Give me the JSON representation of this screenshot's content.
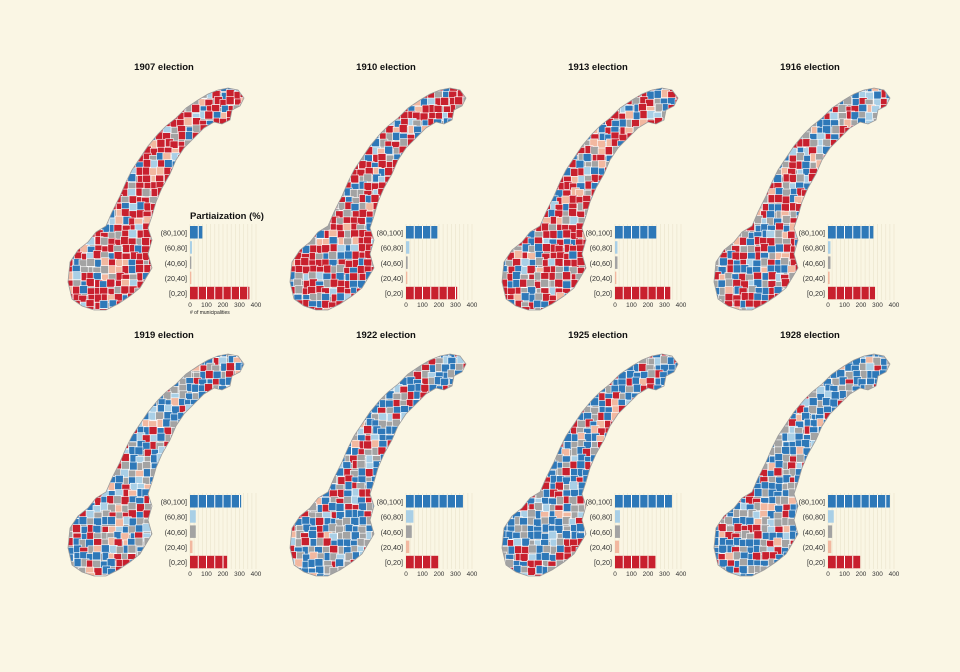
{
  "colors": {
    "background": "#faf6e4",
    "gridline": "#ece6cf",
    "category_colors": [
      "#2e78b8",
      "#a9cfe6",
      "#a3a3a3",
      "#f2b8a0",
      "#c8202e"
    ],
    "map_fill_bins": [
      "#c8202e",
      "#a3a3a3",
      "#2e78b8",
      "#a9cfe6",
      "#f2b8a0"
    ]
  },
  "legend": {
    "title": "Partiaization (%)",
    "x_axis_note": "# of municipalities"
  },
  "chart_data": [
    {
      "type": "bar",
      "orientation": "horizontal",
      "title": "1907 election",
      "categories": [
        "(80,100]",
        "(60,80]",
        "(40,60]",
        "(20,40]",
        "[0,20]"
      ],
      "values": [
        75,
        12,
        8,
        8,
        360
      ],
      "xlim": [
        0,
        400
      ],
      "xticks": [
        0,
        100,
        200,
        300,
        400
      ],
      "xlabel": "# of municipalities",
      "map_mix": [
        60,
        12,
        16,
        5,
        7
      ]
    },
    {
      "type": "bar",
      "orientation": "horizontal",
      "title": "1910 election",
      "categories": [
        "(80,100]",
        "(60,80]",
        "(40,60]",
        "(20,40]",
        "[0,20]"
      ],
      "values": [
        190,
        20,
        10,
        8,
        310
      ],
      "xlim": [
        0,
        400
      ],
      "xticks": [
        0,
        100,
        200,
        300,
        400
      ],
      "map_mix": [
        50,
        16,
        22,
        6,
        6
      ]
    },
    {
      "type": "bar",
      "orientation": "horizontal",
      "title": "1913 election",
      "categories": [
        "(80,100]",
        "(60,80]",
        "(40,60]",
        "(20,40]",
        "[0,20]"
      ],
      "values": [
        250,
        15,
        15,
        8,
        335
      ],
      "xlim": [
        0,
        400
      ],
      "xticks": [
        0,
        100,
        200,
        300,
        400
      ],
      "map_mix": [
        42,
        18,
        28,
        6,
        6
      ]
    },
    {
      "type": "bar",
      "orientation": "horizontal",
      "title": "1916 election",
      "categories": [
        "(80,100]",
        "(60,80]",
        "(40,60]",
        "(20,40]",
        "[0,20]"
      ],
      "values": [
        275,
        15,
        15,
        10,
        285
      ],
      "xlim": [
        0,
        400
      ],
      "xticks": [
        0,
        100,
        200,
        300,
        400
      ],
      "map_mix": [
        35,
        20,
        30,
        8,
        7
      ]
    },
    {
      "type": "bar",
      "orientation": "horizontal",
      "title": "1919 election",
      "categories": [
        "(80,100]",
        "(60,80]",
        "(40,60]",
        "(20,40]",
        "[0,20]"
      ],
      "values": [
        310,
        35,
        35,
        15,
        225
      ],
      "xlim": [
        0,
        400
      ],
      "xticks": [
        0,
        100,
        200,
        300,
        400
      ],
      "map_mix": [
        22,
        24,
        38,
        10,
        6
      ]
    },
    {
      "type": "bar",
      "orientation": "horizontal",
      "title": "1922 election",
      "categories": [
        "(80,100]",
        "(60,80]",
        "(40,60]",
        "(20,40]",
        "[0,20]"
      ],
      "values": [
        345,
        45,
        35,
        20,
        195
      ],
      "xlim": [
        0,
        400
      ],
      "xticks": [
        0,
        100,
        200,
        300,
        400
      ],
      "map_mix": [
        18,
        24,
        42,
        10,
        6
      ]
    },
    {
      "type": "bar",
      "orientation": "horizontal",
      "title": "1925 election",
      "categories": [
        "(80,100]",
        "(60,80]",
        "(40,60]",
        "(20,40]",
        "[0,20]"
      ],
      "values": [
        345,
        30,
        30,
        25,
        245
      ],
      "xlim": [
        0,
        400
      ],
      "xticks": [
        0,
        100,
        200,
        300,
        400
      ],
      "map_mix": [
        24,
        24,
        38,
        8,
        6
      ]
    },
    {
      "type": "bar",
      "orientation": "horizontal",
      "title": "1928 election",
      "categories": [
        "(80,100]",
        "(60,80]",
        "(40,60]",
        "(20,40]",
        "[0,20]"
      ],
      "values": [
        375,
        35,
        25,
        20,
        195
      ],
      "xlim": [
        0,
        400
      ],
      "xticks": [
        0,
        100,
        200,
        300,
        400
      ],
      "map_mix": [
        16,
        24,
        44,
        10,
        6
      ]
    }
  ]
}
